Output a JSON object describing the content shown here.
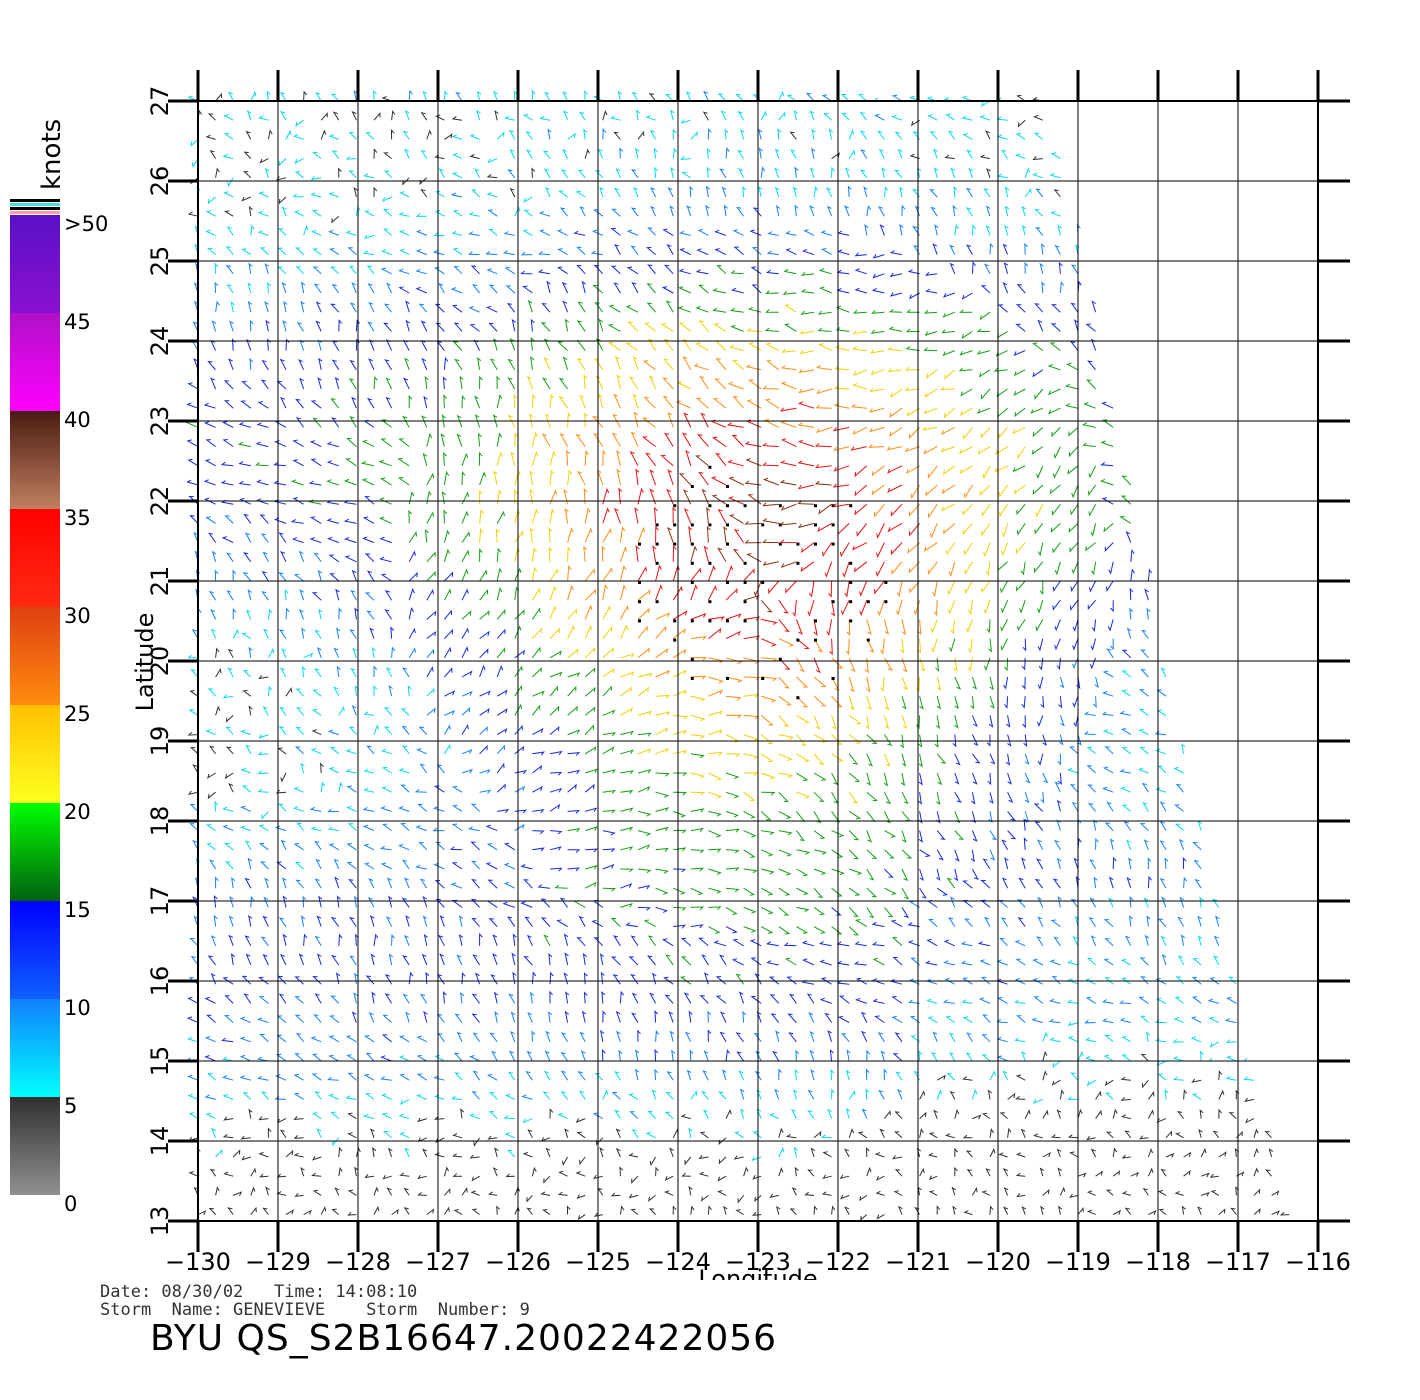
{
  "colorbar": {
    "unit_label": "knots",
    "labels": [
      ">50",
      "45",
      "40",
      "35",
      "30",
      "25",
      "20",
      "15",
      "10",
      "5",
      "0"
    ],
    "bands": [
      {
        "from": 45,
        "to": 50,
        "top": "#5a10c8",
        "bottom": "#8a10d0"
      },
      {
        "from": 40,
        "to": 45,
        "top": "#b010c8",
        "bottom": "#ff00ff"
      },
      {
        "from": 35,
        "to": 40,
        "top": "#4a1a10",
        "bottom": "#c08060"
      },
      {
        "from": 30,
        "to": 35,
        "top": "#ff0000",
        "bottom": "#ff2a10"
      },
      {
        "from": 25,
        "to": 30,
        "top": "#e04010",
        "bottom": "#ff8c10"
      },
      {
        "from": 20,
        "to": 25,
        "top": "#ffc000",
        "bottom": "#ffff20"
      },
      {
        "from": 15,
        "to": 20,
        "top": "#00ff00",
        "bottom": "#006010"
      },
      {
        "from": 10,
        "to": 15,
        "top": "#0000ff",
        "bottom": "#1060ff"
      },
      {
        "from": 5,
        "to": 10,
        "top": "#1080ff",
        "bottom": "#00ffff"
      },
      {
        "from": 0,
        "to": 5,
        "top": "#303030",
        "bottom": "#909090"
      }
    ],
    "top_stripes": [
      "#000000",
      "#40e0e0",
      "#000000",
      "#ff9ab0"
    ]
  },
  "map": {
    "xlabel": "Longitude",
    "ylabel": "Latitude",
    "lon_range": [
      -130,
      -116
    ],
    "lat_range": [
      13,
      27
    ],
    "lon_ticks": [
      "-130",
      "-129",
      "-128",
      "-127",
      "-126",
      "-125",
      "-124",
      "-123",
      "-122",
      "-121",
      "-120",
      "-119",
      "-118",
      "-117",
      "-116"
    ],
    "lat_ticks": [
      "13",
      "14",
      "15",
      "16",
      "17",
      "18",
      "19",
      "20",
      "21",
      "22",
      "23",
      "24",
      "25",
      "26",
      "27"
    ],
    "swath_edge": [
      [
        -119.4,
        27
      ],
      [
        -118.9,
        25
      ],
      [
        -118.3,
        22
      ],
      [
        -117.7,
        19
      ],
      [
        -117.0,
        16
      ],
      [
        -116.3,
        13
      ]
    ],
    "storm_center": [
      -123.0,
      21.0
    ]
  },
  "info": {
    "line1": "Date: 08/30/02   Time: 14:08:10",
    "line2": "Storm  Name: GENEVIEVE    Storm  Number: 9"
  },
  "footer": {
    "title": "BYU  QS_S2B16647.20022422056"
  }
}
